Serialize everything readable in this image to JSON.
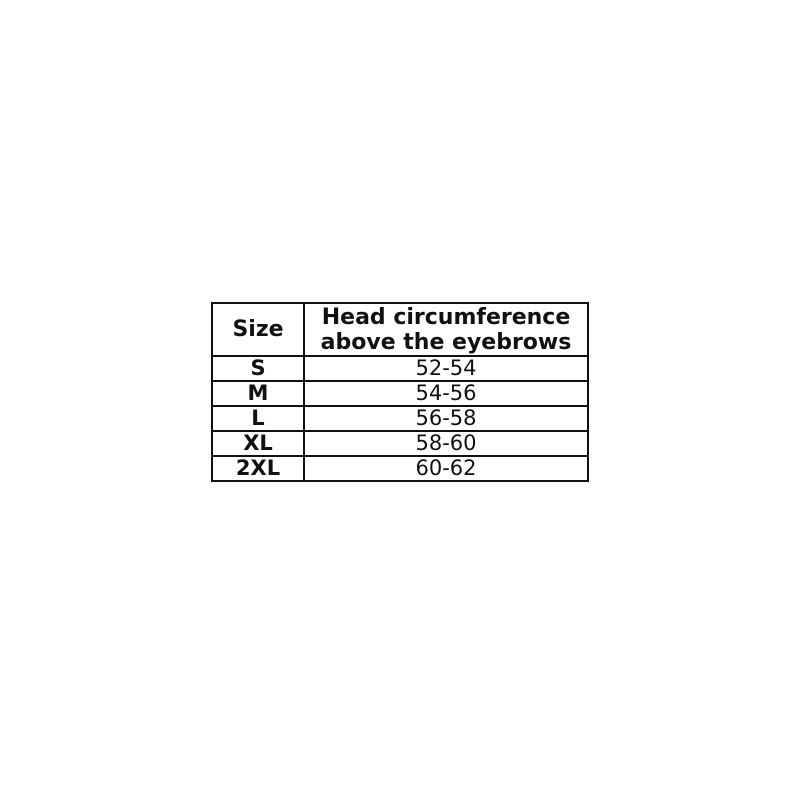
{
  "colors": {
    "background": "#ffffff",
    "border": "#111111",
    "text": "#111111"
  },
  "table": {
    "header": {
      "col1": "Size",
      "col2_line1": "Head circumference",
      "col2_line2": "above the eyebrows"
    },
    "rows": [
      {
        "size": "S",
        "range": "52-54"
      },
      {
        "size": "M",
        "range": "54-56"
      },
      {
        "size": "L",
        "range": "56-58"
      },
      {
        "size": "XL",
        "range": "58-60"
      },
      {
        "size": "2XL",
        "range": "60-62"
      }
    ]
  },
  "chart_data": {
    "type": "table",
    "title": "",
    "columns": [
      "Size",
      "Head circumference above the eyebrows"
    ],
    "rows": [
      [
        "S",
        "52-54"
      ],
      [
        "M",
        "54-56"
      ],
      [
        "L",
        "56-58"
      ],
      [
        "XL",
        "58-60"
      ],
      [
        "2XL",
        "60-62"
      ]
    ]
  }
}
